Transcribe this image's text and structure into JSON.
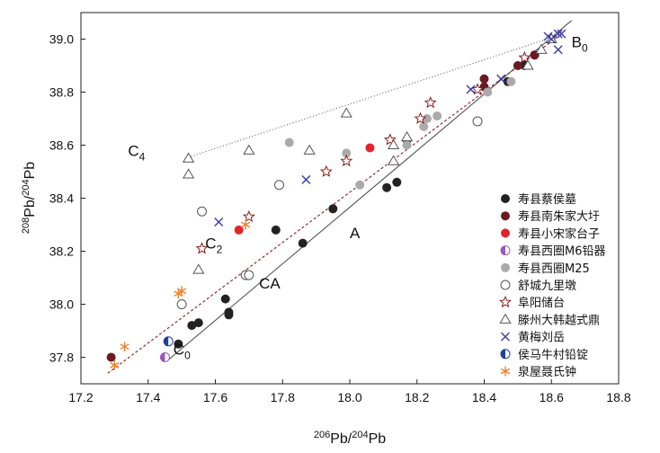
{
  "chart_data": {
    "type": "scatter",
    "xlabel": {
      "sup": "206",
      "base": "Pb/",
      "sup2": "204",
      "base2": "Pb"
    },
    "ylabel": {
      "sup": "208",
      "base": "Pb/",
      "sup2": "204",
      "base2": "Pb"
    },
    "xlim": [
      17.2,
      18.8
    ],
    "ylim": [
      37.7,
      39.1
    ],
    "xticks": [
      "17.2",
      "17.4",
      "17.6",
      "17.8",
      "18.0",
      "18.2",
      "18.4",
      "18.6",
      "18.8"
    ],
    "yticks": [
      "37.8",
      "38.0",
      "38.2",
      "38.4",
      "38.6",
      "38.8",
      "39.0"
    ],
    "xtick_values": [
      17.2,
      17.4,
      17.6,
      17.8,
      18.0,
      18.2,
      18.4,
      18.6,
      18.8
    ],
    "ytick_values": [
      37.8,
      38.0,
      38.2,
      38.4,
      38.6,
      38.8,
      39.0
    ],
    "legend_position": "right",
    "lines": [
      {
        "name": "A",
        "style": "solid",
        "color": "#555555",
        "x": [
          17.46,
          18.66
        ],
        "y": [
          37.79,
          39.07
        ]
      },
      {
        "name": "C2",
        "style": "dashed",
        "color": "#8a1a1a",
        "x": [
          17.28,
          18.62
        ],
        "y": [
          37.74,
          39.01
        ]
      },
      {
        "name": "C4",
        "style": "dotted",
        "color": "#777777",
        "x": [
          17.51,
          18.61
        ],
        "y": [
          38.55,
          39.01
        ]
      }
    ],
    "annotations": [
      {
        "base": "B",
        "sub": "0",
        "x": 18.66,
        "y": 38.97
      },
      {
        "base": "A",
        "sub": "",
        "x": 18.0,
        "y": 38.25
      },
      {
        "base": "C",
        "sub": "2",
        "x": 17.57,
        "y": 38.21
      },
      {
        "base": "CA",
        "sub": "",
        "x": 17.73,
        "y": 38.06
      },
      {
        "base": "C",
        "sub": "0",
        "x": 17.475,
        "y": 37.81
      },
      {
        "base": "C",
        "sub": "4",
        "x": 17.34,
        "y": 38.56
      }
    ],
    "series": [
      {
        "name": "寿县蔡侯墓",
        "marker": "filled-circle",
        "color": "#222222",
        "points": [
          [
            17.49,
            37.85
          ],
          [
            17.53,
            37.92
          ],
          [
            17.55,
            37.93
          ],
          [
            17.63,
            38.02
          ],
          [
            17.64,
            37.96
          ],
          [
            17.64,
            37.97
          ],
          [
            17.78,
            38.28
          ],
          [
            17.86,
            38.23
          ],
          [
            17.95,
            38.36
          ],
          [
            18.11,
            38.44
          ],
          [
            18.14,
            38.46
          ],
          [
            18.47,
            38.84
          ],
          [
            18.52,
            38.9
          ],
          [
            18.55,
            38.94
          ]
        ]
      },
      {
        "name": "寿县南朱家大圩",
        "marker": "filled-circle",
        "color": "#6b1a20",
        "points": [
          [
            17.29,
            37.8
          ],
          [
            18.17,
            38.62
          ],
          [
            18.4,
            38.85
          ],
          [
            18.4,
            38.82
          ],
          [
            18.5,
            38.9
          ],
          [
            18.55,
            38.94
          ]
        ]
      },
      {
        "name": "寿县小宋家台子",
        "marker": "filled-circle",
        "color": "#e0252a",
        "points": [
          [
            17.67,
            38.28
          ],
          [
            18.06,
            38.59
          ]
        ]
      },
      {
        "name": "寿县西圈M6铅器",
        "marker": "half-circle",
        "color": "#9b59b6",
        "points": [
          [
            17.45,
            37.8
          ]
        ]
      },
      {
        "name": "寿县西圈M25",
        "marker": "filled-circle",
        "color": "#aaaaaa",
        "points": [
          [
            17.82,
            38.61
          ],
          [
            17.99,
            38.57
          ],
          [
            18.03,
            38.45
          ],
          [
            18.17,
            38.6
          ],
          [
            18.22,
            38.67
          ],
          [
            18.23,
            38.7
          ],
          [
            18.26,
            38.71
          ],
          [
            18.41,
            38.8
          ],
          [
            18.48,
            38.84
          ]
        ]
      },
      {
        "name": "舒城九里墩",
        "marker": "open-circle",
        "color": "#555555",
        "points": [
          [
            17.56,
            38.35
          ],
          [
            17.5,
            38.0
          ],
          [
            17.69,
            38.11
          ],
          [
            17.7,
            38.11
          ],
          [
            17.79,
            38.45
          ],
          [
            18.38,
            38.69
          ]
        ]
      },
      {
        "name": "阜阳储台",
        "marker": "open-star",
        "color": "#8a1a1a",
        "points": [
          [
            17.56,
            38.21
          ],
          [
            17.7,
            38.33
          ],
          [
            17.93,
            38.5
          ],
          [
            17.99,
            38.54
          ],
          [
            18.12,
            38.62
          ],
          [
            18.21,
            38.7
          ],
          [
            18.24,
            38.76
          ],
          [
            18.38,
            38.81
          ],
          [
            18.52,
            38.93
          ]
        ]
      },
      {
        "name": "滕州大韩越式鼎",
        "marker": "open-triangle",
        "color": "#555555",
        "points": [
          [
            17.52,
            38.55
          ],
          [
            17.52,
            38.49
          ],
          [
            17.55,
            38.13
          ],
          [
            17.7,
            38.58
          ],
          [
            17.88,
            38.58
          ],
          [
            17.99,
            38.72
          ],
          [
            18.13,
            38.54
          ],
          [
            18.13,
            38.6
          ],
          [
            18.17,
            38.63
          ],
          [
            18.53,
            38.9
          ],
          [
            18.57,
            38.96
          ],
          [
            18.6,
            39.0
          ]
        ]
      },
      {
        "name": "黄梅刘岳",
        "marker": "x-cross",
        "color": "#3a3aa8",
        "points": [
          [
            17.61,
            38.31
          ],
          [
            17.87,
            38.47
          ],
          [
            18.36,
            38.81
          ],
          [
            18.45,
            38.85
          ],
          [
            18.59,
            39.01
          ],
          [
            18.6,
            39.0
          ],
          [
            18.62,
            38.96
          ],
          [
            18.62,
            39.02
          ],
          [
            18.63,
            39.02
          ]
        ]
      },
      {
        "name": "侯马牛村铅锭",
        "marker": "half-circle",
        "color": "#1f3f9f",
        "points": [
          [
            17.46,
            37.86
          ]
        ]
      },
      {
        "name": "泉屋聂氏钟",
        "marker": "asterisk",
        "color": "#f08030",
        "points": [
          [
            17.3,
            37.77
          ],
          [
            17.33,
            37.84
          ],
          [
            17.49,
            38.04
          ],
          [
            17.5,
            38.05
          ],
          [
            17.69,
            38.3
          ]
        ]
      }
    ]
  }
}
